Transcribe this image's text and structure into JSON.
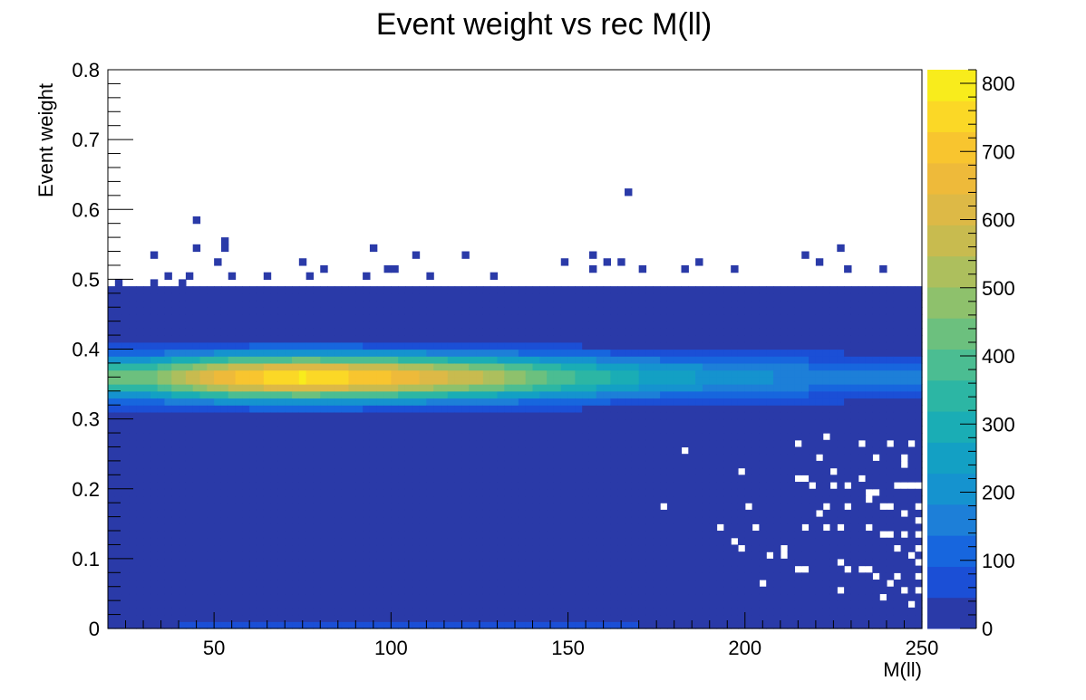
{
  "chart_data": {
    "type": "heatmap",
    "title": "Event weight vs rec M(ll)",
    "xlabel": "M(ll)",
    "ylabel": "Event weight",
    "xlim": [
      20,
      250
    ],
    "ylim": [
      0,
      0.8
    ],
    "x_ticks": [
      50,
      100,
      150,
      200,
      250
    ],
    "y_ticks": [
      0,
      0.1,
      0.2,
      0.3,
      0.4,
      0.5,
      0.6,
      0.7,
      0.8
    ],
    "colorbar": {
      "range": [
        0,
        820
      ],
      "ticks": [
        0,
        100,
        200,
        300,
        400,
        500,
        600,
        700,
        800
      ],
      "palette": [
        "#2a3aa8",
        "#1b4fd6",
        "#1766de",
        "#1d7fd8",
        "#1593cf",
        "#13a0c4",
        "#1aadb5",
        "#2cb6a4",
        "#4bbd92",
        "#6cc07e",
        "#8ec16c",
        "#adbf5d",
        "#c8bb4f",
        "#ddb946",
        "#eeba3a",
        "#f8c52f",
        "#fbd826",
        "#f8ec1c"
      ]
    },
    "grid": false,
    "legend": "none",
    "bins": {
      "x_bins": 115,
      "y_bins": 80,
      "x_width": 2,
      "y_width": 0.01
    },
    "bulk_region": {
      "x_range": [
        20,
        250
      ],
      "y_range": [
        0,
        0.49
      ],
      "min_count": 1
    },
    "ridge": {
      "y_center": 0.36,
      "y_sigma": 0.022,
      "peak_x": 75,
      "peak_count": 800,
      "description_points": [
        {
          "x": 30,
          "count": 420
        },
        {
          "x": 55,
          "count": 700
        },
        {
          "x": 75,
          "count": 800
        },
        {
          "x": 100,
          "count": 700
        },
        {
          "x": 125,
          "count": 560
        },
        {
          "x": 150,
          "count": 380
        },
        {
          "x": 175,
          "count": 260
        },
        {
          "x": 200,
          "count": 200
        },
        {
          "x": 225,
          "count": 160
        },
        {
          "x": 250,
          "count": 140
        }
      ]
    },
    "low_band": {
      "y_range": [
        0,
        0.01
      ],
      "count": 60
    },
    "outliers": [
      [
        167,
        0.62
      ],
      [
        44,
        0.58
      ],
      [
        53,
        0.55
      ],
      [
        53,
        0.54
      ],
      [
        44,
        0.54
      ],
      [
        32,
        0.53
      ],
      [
        94,
        0.54
      ],
      [
        107,
        0.53
      ],
      [
        121,
        0.53
      ],
      [
        156,
        0.53
      ],
      [
        227,
        0.54
      ],
      [
        216,
        0.53
      ],
      [
        250,
        0.52
      ],
      [
        51,
        0.52
      ],
      [
        75,
        0.52
      ],
      [
        98,
        0.51
      ],
      [
        81,
        0.51
      ],
      [
        100,
        0.51
      ],
      [
        149,
        0.52
      ],
      [
        156,
        0.51
      ],
      [
        160,
        0.52
      ],
      [
        164,
        0.52
      ],
      [
        171,
        0.51
      ],
      [
        182,
        0.51
      ],
      [
        186,
        0.52
      ],
      [
        197,
        0.51
      ],
      [
        220,
        0.52
      ],
      [
        229,
        0.51
      ],
      [
        239,
        0.51
      ],
      [
        42,
        0.5
      ],
      [
        54,
        0.5
      ],
      [
        65,
        0.5
      ],
      [
        77,
        0.5
      ],
      [
        92,
        0.5
      ],
      [
        111,
        0.5
      ],
      [
        128,
        0.5
      ],
      [
        36,
        0.5
      ],
      [
        23,
        0.49
      ],
      [
        29,
        0.48
      ],
      [
        27,
        0.48
      ],
      [
        41,
        0.49
      ],
      [
        33,
        0.49
      ]
    ],
    "holes": [
      [
        182,
        0.25
      ],
      [
        214,
        0.26
      ],
      [
        223,
        0.27
      ],
      [
        233,
        0.26
      ],
      [
        241,
        0.26
      ],
      [
        246,
        0.26
      ],
      [
        220,
        0.24
      ],
      [
        236,
        0.24
      ],
      [
        244,
        0.24
      ],
      [
        198,
        0.22
      ],
      [
        224,
        0.22
      ],
      [
        232,
        0.21
      ],
      [
        244,
        0.23
      ],
      [
        214,
        0.21
      ],
      [
        216,
        0.21
      ],
      [
        218,
        0.2
      ],
      [
        225,
        0.2
      ],
      [
        229,
        0.2
      ],
      [
        234,
        0.19
      ],
      [
        237,
        0.19
      ],
      [
        243,
        0.2
      ],
      [
        245,
        0.2
      ],
      [
        247,
        0.2
      ],
      [
        249,
        0.2
      ],
      [
        176,
        0.17
      ],
      [
        200,
        0.17
      ],
      [
        222,
        0.17
      ],
      [
        229,
        0.17
      ],
      [
        235,
        0.18
      ],
      [
        238,
        0.17
      ],
      [
        241,
        0.17
      ],
      [
        248,
        0.17
      ],
      [
        220,
        0.16
      ],
      [
        245,
        0.16
      ],
      [
        249,
        0.15
      ],
      [
        193,
        0.14
      ],
      [
        202,
        0.14
      ],
      [
        216,
        0.14
      ],
      [
        222,
        0.14
      ],
      [
        226,
        0.14
      ],
      [
        234,
        0.14
      ],
      [
        238,
        0.13
      ],
      [
        240,
        0.13
      ],
      [
        244,
        0.13
      ],
      [
        248,
        0.13
      ],
      [
        197,
        0.12
      ],
      [
        199,
        0.11
      ],
      [
        211,
        0.11
      ],
      [
        242,
        0.11
      ],
      [
        249,
        0.11
      ],
      [
        206,
        0.1
      ],
      [
        211,
        0.1
      ],
      [
        246,
        0.1
      ],
      [
        248,
        0.09
      ],
      [
        214,
        0.08
      ],
      [
        216,
        0.08
      ],
      [
        226,
        0.09
      ],
      [
        229,
        0.08
      ],
      [
        232,
        0.08
      ],
      [
        234,
        0.08
      ],
      [
        236,
        0.07
      ],
      [
        243,
        0.07
      ],
      [
        249,
        0.07
      ],
      [
        205,
        0.06
      ],
      [
        241,
        0.06
      ],
      [
        244,
        0.05
      ],
      [
        248,
        0.05
      ],
      [
        226,
        0.05
      ],
      [
        238,
        0.04
      ],
      [
        246,
        0.03
      ]
    ]
  }
}
